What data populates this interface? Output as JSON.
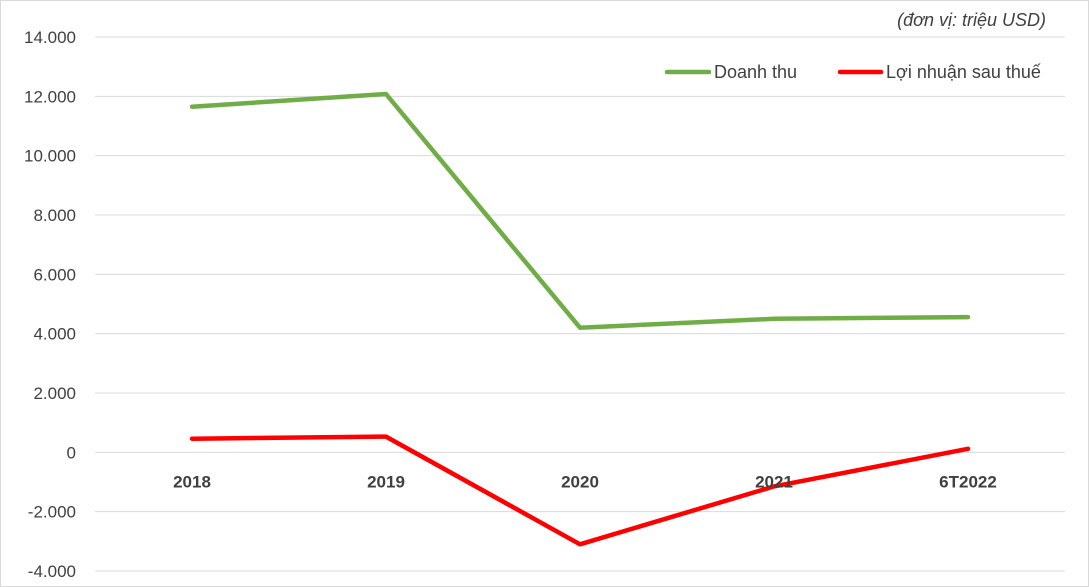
{
  "chart_data": {
    "type": "line",
    "unit_note": "(đơn vị: triệu USD)",
    "categories": [
      "2018",
      "2019",
      "2020",
      "2021",
      "6T2022"
    ],
    "ylim": [
      -4000,
      14000
    ],
    "yticks": [
      14000,
      12000,
      10000,
      8000,
      6000,
      4000,
      2000,
      0,
      -2000,
      -4000
    ],
    "ytick_labels": [
      "14.000",
      "12.000",
      "10.000",
      "8.000",
      "6.000",
      "4.000",
      "2.000",
      "0",
      "-2.000",
      "-4.000"
    ],
    "grid": true,
    "legend_position": "top-right",
    "series": [
      {
        "name": "Doanh thu",
        "color": "#70ad47",
        "values": [
          11650,
          12080,
          4200,
          4500,
          4560
        ]
      },
      {
        "name": "Lợi nhuận sau thuế",
        "color": "#ff0000",
        "values": [
          460,
          530,
          -3100,
          -1150,
          120
        ]
      }
    ]
  }
}
